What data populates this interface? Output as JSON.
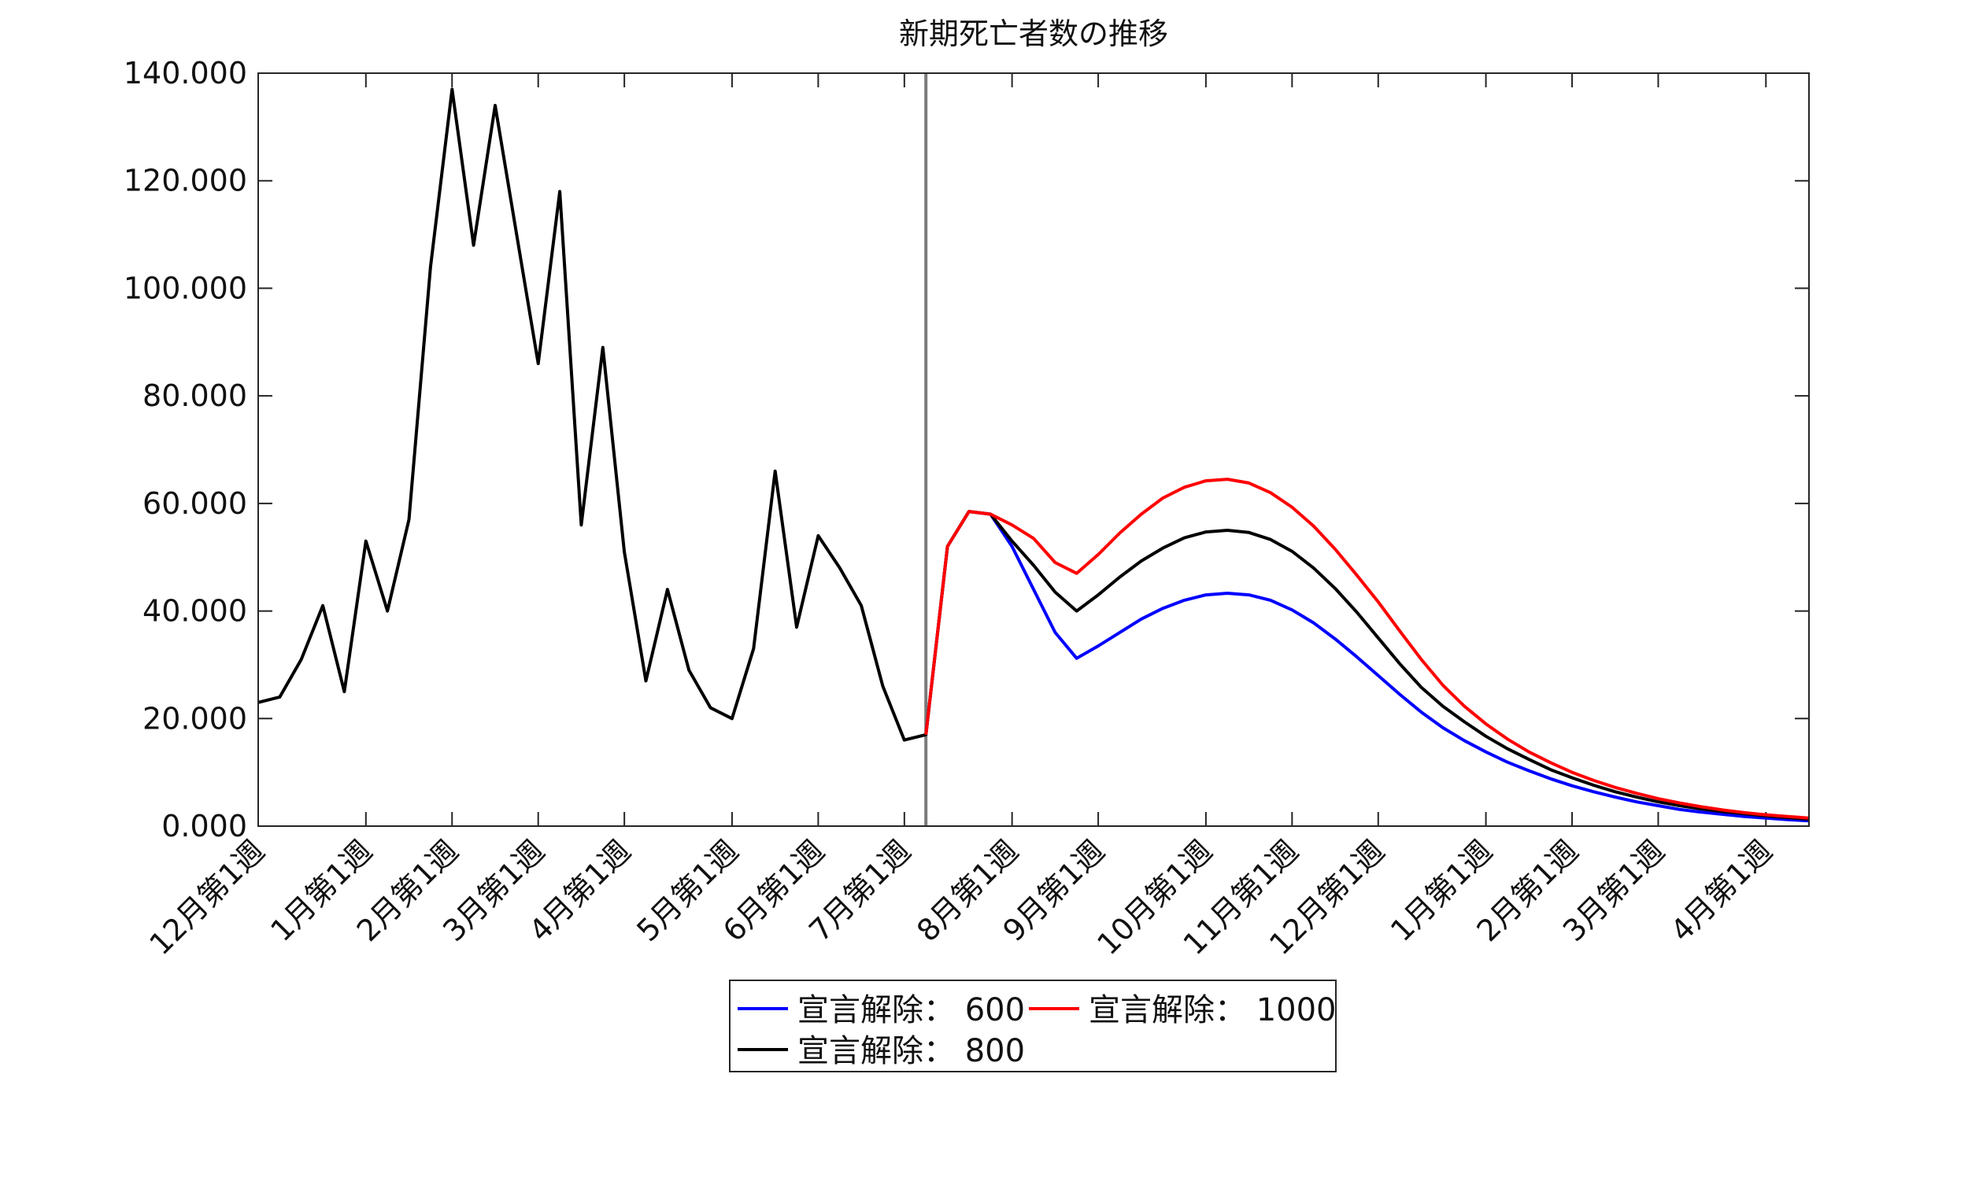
{
  "chart_data": {
    "type": "line",
    "title": "新期死亡者数の推移",
    "xlabel": "",
    "ylabel": "",
    "ylim": [
      0,
      140
    ],
    "y_ticks": [
      "0.000",
      "20.000",
      "40.000",
      "60.000",
      "80.000",
      "100.000",
      "120.000",
      "140.000"
    ],
    "x_range": [
      0,
      72
    ],
    "x_ticks": [
      {
        "x": 0,
        "label": "12月第1週"
      },
      {
        "x": 5,
        "label": "1月第1週"
      },
      {
        "x": 9,
        "label": "2月第1週"
      },
      {
        "x": 13,
        "label": "3月第1週"
      },
      {
        "x": 17,
        "label": "4月第1週"
      },
      {
        "x": 22,
        "label": "5月第1週"
      },
      {
        "x": 26,
        "label": "6月第1週"
      },
      {
        "x": 30,
        "label": "7月第1週"
      },
      {
        "x": 35,
        "label": "8月第1週"
      },
      {
        "x": 39,
        "label": "9月第1週"
      },
      {
        "x": 44,
        "label": "10月第1週"
      },
      {
        "x": 48,
        "label": "11月第1週"
      },
      {
        "x": 52,
        "label": "12月第1週"
      },
      {
        "x": 57,
        "label": "1月第1週"
      },
      {
        "x": 61,
        "label": "2月第1週"
      },
      {
        "x": 65,
        "label": "3月第1週"
      },
      {
        "x": 70,
        "label": "4月第1週"
      }
    ],
    "vline_x": 31,
    "grid": false,
    "legend_position": "bottom-center",
    "series": [
      {
        "name": "宣言解除： 600",
        "color": "#0000ff",
        "x": [
          31,
          32,
          33,
          34,
          35,
          36,
          37,
          38,
          39,
          40,
          41,
          42,
          43,
          44,
          45,
          46,
          47,
          48,
          49,
          50,
          51,
          52,
          53,
          54,
          55,
          56,
          57,
          58,
          59,
          60,
          61,
          62,
          63,
          64,
          65,
          66,
          67,
          68,
          69,
          70,
          71,
          72
        ],
        "y": [
          17,
          52,
          58.5,
          58,
          52,
          44,
          36,
          31.2,
          33.5,
          36,
          38.5,
          40.5,
          42,
          43,
          43.3,
          43,
          42,
          40.2,
          37.8,
          34.8,
          31.5,
          28,
          24.5,
          21.2,
          18.3,
          15.9,
          13.8,
          11.9,
          10.3,
          8.8,
          7.5,
          6.4,
          5.4,
          4.5,
          3.8,
          3.1,
          2.6,
          2.2,
          1.8,
          1.5,
          1.2,
          1.0
        ]
      },
      {
        "name": "宣言解除： 1000",
        "color": "#ff0000",
        "x": [
          31,
          32,
          33,
          34,
          35,
          36,
          37,
          38,
          39,
          40,
          41,
          42,
          43,
          44,
          45,
          46,
          47,
          48,
          49,
          50,
          51,
          52,
          53,
          54,
          55,
          56,
          57,
          58,
          59,
          60,
          61,
          62,
          63,
          64,
          65,
          66,
          67,
          68,
          69,
          70,
          71,
          72
        ],
        "y": [
          17,
          52,
          58.5,
          58,
          56,
          53.5,
          49,
          47,
          50.5,
          54.5,
          58,
          61,
          63,
          64.2,
          64.5,
          63.8,
          62,
          59.3,
          55.8,
          51.5,
          46.7,
          41.7,
          36.3,
          31,
          26.2,
          22.3,
          19,
          16.2,
          13.8,
          11.8,
          10,
          8.5,
          7.2,
          6.1,
          5.1,
          4.3,
          3.6,
          3,
          2.5,
          2.1,
          1.8,
          1.5
        ]
      },
      {
        "name": "宣言解除： 800",
        "color": "#000000",
        "x": [
          0,
          1,
          2,
          3,
          4,
          5,
          6,
          7,
          8,
          9,
          10,
          11,
          12,
          13,
          14,
          15,
          16,
          17,
          18,
          19,
          20,
          21,
          22,
          23,
          24,
          25,
          26,
          27,
          28,
          29,
          30,
          31,
          32,
          33,
          34,
          35,
          36,
          37,
          38,
          39,
          40,
          41,
          42,
          43,
          44,
          45,
          46,
          47,
          48,
          49,
          50,
          51,
          52,
          53,
          54,
          55,
          56,
          57,
          58,
          59,
          60,
          61,
          62,
          63,
          64,
          65,
          66,
          67,
          68,
          69,
          70,
          71,
          72
        ],
        "y": [
          23,
          24,
          31,
          41,
          25,
          53,
          40,
          57,
          104,
          137,
          108,
          134,
          110,
          86,
          118,
          56,
          89,
          51,
          27,
          44,
          29,
          22,
          20,
          33,
          66,
          37,
          54,
          48,
          41,
          26,
          16,
          17,
          52,
          58.5,
          58,
          53,
          48.5,
          43.5,
          40,
          43,
          46.3,
          49.3,
          51.7,
          53.6,
          54.7,
          55,
          54.6,
          53.3,
          51.1,
          48,
          44.2,
          39.8,
          35,
          30.2,
          25.8,
          22.3,
          19.4,
          16.7,
          14.4,
          12.4,
          10.5,
          9,
          7.6,
          6.4,
          5.4,
          4.5,
          3.8,
          3.2,
          2.7,
          2.3,
          1.9,
          1.6,
          1.3
        ]
      }
    ]
  },
  "legend": {
    "items": [
      {
        "label": "宣言解除： 600",
        "color": "#0000ff"
      },
      {
        "label": "宣言解除： 1000",
        "color": "#ff0000"
      },
      {
        "label": "宣言解除： 800",
        "color": "#000000"
      }
    ]
  }
}
